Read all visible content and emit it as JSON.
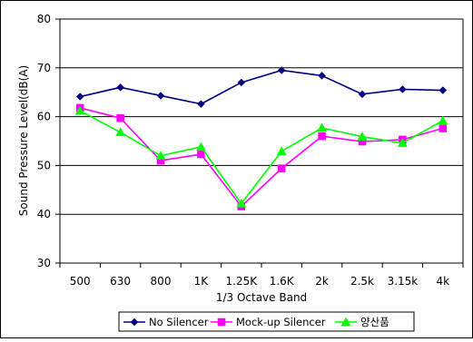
{
  "chart_data": {
    "type": "line",
    "title": "",
    "xlabel": "1/3 Octave Band",
    "ylabel": "Sound Pressure Level(dB(A)",
    "ylim": [
      30,
      80
    ],
    "yticks": [
      30,
      40,
      50,
      60,
      70,
      80
    ],
    "grid": "horizontal",
    "legend_position": "bottom",
    "categories": [
      "500",
      "630",
      "800",
      "1K",
      "1.25K",
      "1.6K",
      "2k",
      "2.5k",
      "3.15k",
      "4k"
    ],
    "series": [
      {
        "name": "No Silencer",
        "color": "#000080",
        "marker": "diamond",
        "values": [
          64.1,
          66.0,
          64.3,
          62.6,
          67.0,
          69.5,
          68.4,
          64.6,
          65.6,
          65.4
        ]
      },
      {
        "name": "Mock-up Silencer",
        "color": "#ff00ff",
        "marker": "square",
        "values": [
          61.8,
          59.7,
          51.0,
          52.3,
          41.6,
          49.4,
          56.0,
          54.9,
          55.3,
          57.6
        ]
      },
      {
        "name": "양산품",
        "color": "#00ff00",
        "marker": "triangle",
        "values": [
          61.2,
          56.8,
          52.0,
          53.8,
          42.2,
          52.9,
          57.7,
          55.9,
          54.6,
          59.2
        ]
      }
    ]
  }
}
